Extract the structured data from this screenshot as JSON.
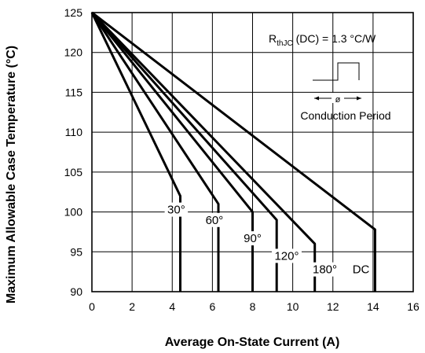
{
  "chart_data": {
    "type": "line",
    "title": "",
    "xlabel": "Average On-State Current (A)",
    "ylabel": "Maximum Allowable Case Temperature (°C)",
    "xlim": [
      0,
      16
    ],
    "ylim": [
      90,
      125
    ],
    "xticks": [
      "0",
      "2",
      "4",
      "6",
      "8",
      "10",
      "12",
      "14",
      "16"
    ],
    "yticks": [
      "125",
      "120",
      "115",
      "110",
      "105",
      "100",
      "95",
      "90"
    ],
    "grid": true,
    "annotation": {
      "rth_main": "R",
      "rth_sub": "thJC",
      "rth_rest": " (DC) = 1.3 °C/W",
      "phi": "ø",
      "conduction": "Conduction Period"
    },
    "series": [
      {
        "name": "30°",
        "x": [
          0,
          4.4,
          4.4
        ],
        "y": [
          125,
          102,
          90
        ],
        "label_at": [
          4.2,
          99.8
        ]
      },
      {
        "name": "60°",
        "x": [
          0,
          6.3,
          6.3
        ],
        "y": [
          125,
          101,
          90
        ],
        "label_at": [
          6.1,
          98.5
        ]
      },
      {
        "name": "90°",
        "x": [
          0,
          8.0,
          8.0
        ],
        "y": [
          125,
          100,
          90
        ],
        "label_at": [
          8.0,
          96.2
        ]
      },
      {
        "name": "120°",
        "x": [
          0,
          9.2,
          9.2
        ],
        "y": [
          125,
          99,
          90
        ],
        "label_at": [
          9.7,
          94.0
        ]
      },
      {
        "name": "180°",
        "x": [
          0,
          11.1,
          11.1
        ],
        "y": [
          125,
          96,
          90
        ],
        "label_at": [
          11.6,
          92.3
        ]
      },
      {
        "name": "DC",
        "x": [
          0,
          14.1,
          14.1
        ],
        "y": [
          125,
          97.8,
          90
        ],
        "label_at": [
          13.4,
          92.3
        ]
      }
    ]
  }
}
